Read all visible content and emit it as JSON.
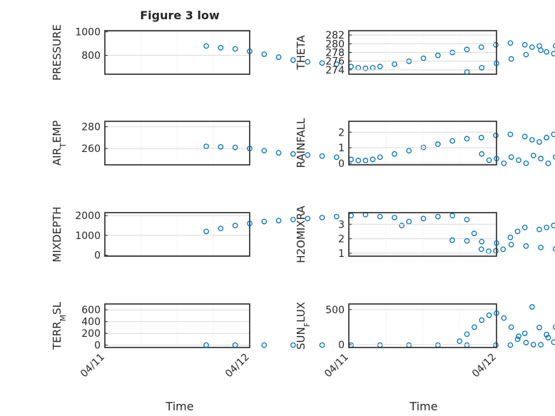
{
  "figure": {
    "title": "Figure 3 low",
    "xlabel": "Time"
  },
  "style": {
    "marker_color": "#0072BD",
    "axis_color": "#262626",
    "grid_color": "#d9d9d9",
    "background": "#ffffff"
  },
  "chart_data": [
    {
      "type": "scatter",
      "panel": "top-left",
      "ylabel": "PRESSURE",
      "xlim": [
        "04/11",
        "04/16"
      ],
      "ylim": [
        640,
        1010
      ],
      "yticks": [
        800,
        1000
      ],
      "points": [
        [
          0.7,
          880
        ],
        [
          0.8,
          865
        ],
        [
          0.9,
          855
        ],
        [
          1.0,
          835
        ],
        [
          1.1,
          810
        ],
        [
          1.2,
          785
        ],
        [
          1.3,
          760
        ],
        [
          1.4,
          745
        ],
        [
          1.5,
          735
        ],
        [
          1.6,
          725
        ],
        [
          1.7,
          705
        ],
        [
          1.75,
          695
        ],
        [
          1.8,
          690
        ],
        [
          1.85,
          695
        ],
        [
          1.9,
          705
        ],
        [
          2.0,
          725
        ],
        [
          2.1,
          750
        ],
        [
          2.2,
          775
        ],
        [
          2.3,
          800
        ],
        [
          2.4,
          825
        ],
        [
          2.5,
          850
        ],
        [
          2.6,
          870
        ],
        [
          2.7,
          890
        ],
        [
          2.8,
          905
        ],
        [
          2.9,
          890
        ],
        [
          2.95,
          870
        ],
        [
          3.0,
          880
        ],
        [
          3.05,
          830
        ],
        [
          3.1,
          815
        ],
        [
          3.15,
          870
        ],
        [
          3.2,
          895
        ],
        [
          3.3,
          920
        ],
        [
          3.4,
          945
        ],
        [
          3.5,
          940
        ],
        [
          3.6,
          955
        ],
        [
          3.7,
          975
        ],
        [
          3.8,
          985
        ],
        [
          3.9,
          995
        ],
        [
          4.0,
          1000
        ],
        [
          4.1,
          1005
        ]
      ]
    },
    {
      "type": "scatter",
      "panel": "top-right",
      "ylabel": "THETA",
      "xlim": [
        "04/11",
        "04/16"
      ],
      "ylim": [
        273,
        283
      ],
      "yticks": [
        274,
        276,
        278,
        280,
        282
      ],
      "points": [
        [
          0.8,
          273.5
        ],
        [
          0.9,
          274.5
        ],
        [
          1.0,
          275.5
        ],
        [
          1.1,
          276.5
        ],
        [
          1.2,
          277.5
        ],
        [
          1.3,
          278.5
        ],
        [
          1.4,
          279.5
        ],
        [
          1.5,
          280.5
        ],
        [
          1.6,
          281.5
        ],
        [
          1.7,
          282.0
        ],
        [
          1.8,
          282.3
        ],
        [
          1.9,
          282.5
        ],
        [
          2.0,
          282.5
        ],
        [
          2.1,
          282.4
        ],
        [
          2.2,
          282.3
        ],
        [
          2.3,
          282.2
        ],
        [
          2.4,
          282.0
        ],
        [
          2.5,
          281.8
        ],
        [
          2.6,
          281.5
        ],
        [
          2.65,
          280.0
        ],
        [
          2.7,
          279.5
        ],
        [
          2.75,
          280.2
        ],
        [
          2.8,
          281.0
        ],
        [
          2.9,
          282.0
        ],
        [
          3.0,
          282.5
        ],
        [
          3.1,
          282.6
        ],
        [
          3.2,
          282.4
        ],
        [
          3.3,
          282.2
        ],
        [
          3.4,
          281.5
        ],
        [
          3.5,
          280.8
        ],
        [
          3.55,
          280.2
        ],
        [
          3.6,
          280.6
        ],
        [
          3.7,
          281.5
        ],
        [
          3.75,
          282.6
        ]
      ]
    },
    {
      "type": "scatter",
      "panel": "second-left",
      "ylabel": "AIR_TEMP",
      "xlim": [
        "04/11",
        "04/16"
      ],
      "ylim": [
        245,
        285
      ],
      "yticks": [
        260,
        280
      ],
      "points": [
        [
          0.7,
          262
        ],
        [
          0.8,
          261.5
        ],
        [
          0.9,
          261
        ],
        [
          1.0,
          260
        ],
        [
          1.1,
          258
        ],
        [
          1.2,
          256
        ],
        [
          1.3,
          255
        ],
        [
          1.4,
          254
        ],
        [
          1.5,
          253
        ],
        [
          1.6,
          252
        ],
        [
          1.7,
          250
        ],
        [
          1.75,
          249
        ],
        [
          1.8,
          249
        ],
        [
          1.85,
          250
        ],
        [
          1.9,
          252
        ],
        [
          2.0,
          255
        ],
        [
          2.1,
          258
        ],
        [
          2.2,
          261
        ],
        [
          2.3,
          264
        ],
        [
          2.4,
          267
        ],
        [
          2.5,
          269
        ],
        [
          2.6,
          270
        ],
        [
          2.7,
          272
        ],
        [
          2.8,
          273
        ],
        [
          2.9,
          271
        ],
        [
          2.95,
          268
        ],
        [
          3.0,
          266
        ],
        [
          3.05,
          270
        ],
        [
          3.1,
          273
        ],
        [
          3.2,
          275
        ],
        [
          3.3,
          276
        ],
        [
          3.4,
          277
        ],
        [
          3.5,
          277.5
        ],
        [
          3.6,
          278
        ],
        [
          3.7,
          279
        ],
        [
          3.8,
          280
        ],
        [
          3.9,
          281
        ],
        [
          4.0,
          282
        ],
        [
          4.1,
          283.5
        ]
      ]
    },
    {
      "type": "scatter",
      "panel": "second-right",
      "ylabel": "RAINFALL",
      "xlim": [
        "04/11",
        "04/16"
      ],
      "ylim": [
        -0.1,
        2.7
      ],
      "yticks": [
        0,
        1,
        2
      ],
      "points": [
        [
          0.9,
          0.6
        ],
        [
          0.95,
          0.2
        ],
        [
          1.0,
          0.3
        ],
        [
          1.05,
          0.0
        ],
        [
          1.1,
          0.4
        ],
        [
          1.15,
          0.2
        ],
        [
          1.2,
          0.0
        ],
        [
          1.25,
          0.5
        ],
        [
          1.3,
          0.3
        ],
        [
          1.35,
          0.0
        ],
        [
          1.4,
          0.4
        ],
        [
          1.45,
          0.2
        ],
        [
          1.5,
          0.6
        ],
        [
          1.55,
          0.0
        ],
        [
          1.6,
          0.3
        ],
        [
          1.65,
          0.2
        ],
        [
          1.7,
          0.0
        ],
        [
          1.75,
          0.3
        ],
        [
          1.8,
          0.1
        ],
        [
          1.85,
          0.0
        ],
        [
          1.9,
          0.3
        ],
        [
          1.95,
          0.0
        ],
        [
          2.0,
          0.0
        ],
        [
          2.1,
          0.0
        ],
        [
          2.2,
          0.0
        ],
        [
          2.3,
          0.0
        ],
        [
          2.4,
          0.0
        ],
        [
          2.5,
          0.0
        ],
        [
          2.6,
          0.0
        ],
        [
          2.7,
          0.0
        ],
        [
          2.75,
          2.5
        ],
        [
          2.78,
          1.2
        ],
        [
          2.82,
          0.0
        ],
        [
          2.9,
          0.3
        ],
        [
          2.95,
          0.1
        ],
        [
          3.0,
          0.0
        ],
        [
          3.05,
          0.2
        ],
        [
          3.1,
          0.0
        ],
        [
          3.15,
          0.3
        ],
        [
          3.2,
          0.0
        ],
        [
          3.3,
          0.0
        ],
        [
          3.4,
          0.0
        ],
        [
          3.5,
          0.0
        ],
        [
          3.6,
          0.0
        ],
        [
          3.7,
          0.0
        ],
        [
          3.8,
          0.0
        ],
        [
          3.9,
          0.0
        ],
        [
          4.0,
          0.0
        ]
      ]
    },
    {
      "type": "scatter",
      "panel": "third-left",
      "ylabel": "MIXDEPTH",
      "xlim": [
        "04/11",
        "04/16"
      ],
      "ylim": [
        -50,
        2150
      ],
      "yticks": [
        0,
        1000,
        2000
      ],
      "points": [
        [
          0.7,
          1200
        ],
        [
          0.8,
          1350
        ],
        [
          0.9,
          1500
        ],
        [
          1.0,
          1600
        ],
        [
          1.1,
          1700
        ],
        [
          1.2,
          1750
        ],
        [
          1.3,
          1800
        ],
        [
          1.4,
          1850
        ],
        [
          1.5,
          1900
        ],
        [
          1.6,
          1950
        ],
        [
          1.7,
          2000
        ],
        [
          1.8,
          2050
        ],
        [
          1.9,
          1950
        ],
        [
          2.0,
          1900
        ],
        [
          2.05,
          1500
        ],
        [
          2.1,
          1700
        ],
        [
          2.2,
          1850
        ],
        [
          2.3,
          1950
        ],
        [
          2.4,
          2000
        ],
        [
          2.5,
          1800
        ],
        [
          2.55,
          1100
        ],
        [
          2.6,
          300
        ],
        [
          2.65,
          200
        ],
        [
          2.7,
          220
        ],
        [
          2.75,
          300
        ],
        [
          2.8,
          900
        ],
        [
          2.85,
          1200
        ],
        [
          2.9,
          1400
        ],
        [
          3.0,
          1300
        ],
        [
          3.05,
          1400
        ],
        [
          3.1,
          1500
        ],
        [
          3.2,
          1450
        ],
        [
          3.3,
          50
        ],
        [
          3.4,
          100
        ],
        [
          3.5,
          150
        ],
        [
          3.6,
          200
        ],
        [
          3.7,
          150
        ],
        [
          3.8,
          120
        ],
        [
          3.9,
          200
        ],
        [
          4.0,
          100
        ],
        [
          4.05,
          400
        ]
      ]
    },
    {
      "type": "scatter",
      "panel": "third-right",
      "ylabel": "H2OMIXRA",
      "xlim": [
        "04/11",
        "04/16"
      ],
      "ylim": [
        0.8,
        3.8
      ],
      "yticks": [
        1,
        2,
        3
      ],
      "points": [
        [
          0.7,
          1.9
        ],
        [
          0.8,
          1.85
        ],
        [
          0.9,
          1.8
        ],
        [
          1.0,
          1.7
        ],
        [
          1.1,
          1.6
        ],
        [
          1.2,
          1.5
        ],
        [
          1.3,
          1.4
        ],
        [
          1.4,
          1.3
        ],
        [
          1.5,
          1.2
        ],
        [
          1.6,
          1.15
        ],
        [
          1.7,
          1.1
        ],
        [
          1.8,
          1.05
        ],
        [
          1.85,
          1.0
        ],
        [
          1.9,
          1.0
        ],
        [
          2.0,
          1.1
        ],
        [
          2.1,
          1.2
        ],
        [
          2.2,
          1.3
        ],
        [
          2.3,
          1.4
        ],
        [
          2.4,
          1.5
        ],
        [
          2.5,
          1.6
        ],
        [
          2.6,
          1.7
        ],
        [
          2.65,
          1.5
        ],
        [
          2.7,
          2.0
        ],
        [
          2.75,
          2.6
        ],
        [
          2.8,
          3.0
        ],
        [
          2.85,
          3.2
        ],
        [
          2.9,
          2.9
        ],
        [
          3.0,
          2.7
        ],
        [
          3.05,
          3.1
        ],
        [
          3.1,
          3.2
        ],
        [
          3.2,
          3.3
        ],
        [
          3.3,
          3.4
        ],
        [
          3.4,
          3.5
        ],
        [
          3.5,
          3.5
        ],
        [
          3.6,
          3.4
        ],
        [
          3.7,
          3.6
        ],
        [
          3.8,
          3.5
        ],
        [
          3.85,
          3.45
        ]
      ]
    },
    {
      "type": "scatter",
      "panel": "bottom-left",
      "ylabel": "TERR_MSL",
      "xlim": [
        "04/11",
        "04/16"
      ],
      "ylim": [
        -40,
        700
      ],
      "yticks": [
        0,
        200,
        400,
        600
      ],
      "points": [
        [
          0.7,
          0
        ],
        [
          0.9,
          0
        ],
        [
          1.1,
          0
        ],
        [
          1.3,
          0
        ],
        [
          1.5,
          0
        ],
        [
          1.7,
          0
        ],
        [
          1.9,
          0
        ],
        [
          2.1,
          0
        ],
        [
          2.3,
          0
        ],
        [
          2.5,
          0
        ],
        [
          2.7,
          0
        ],
        [
          2.8,
          0
        ],
        [
          2.85,
          100
        ],
        [
          2.9,
          200
        ],
        [
          2.95,
          650
        ],
        [
          3.0,
          300
        ],
        [
          3.05,
          180
        ],
        [
          3.1,
          50
        ],
        [
          3.2,
          0
        ],
        [
          3.3,
          0
        ],
        [
          3.4,
          80
        ],
        [
          3.5,
          120
        ],
        [
          3.6,
          80
        ],
        [
          3.7,
          10
        ],
        [
          3.8,
          0
        ],
        [
          3.9,
          0
        ]
      ]
    },
    {
      "type": "scatter",
      "panel": "bottom-right",
      "ylabel": "SUN_FLUX",
      "xlim": [
        "04/11",
        "04/16"
      ],
      "ylim": [
        -40,
        580
      ],
      "yticks": [
        0,
        500
      ],
      "points": [
        [
          0.75,
          50
        ],
        [
          0.8,
          150
        ],
        [
          0.85,
          250
        ],
        [
          0.9,
          350
        ],
        [
          0.95,
          420
        ],
        [
          1.0,
          450
        ],
        [
          1.05,
          380
        ],
        [
          1.1,
          250
        ],
        [
          1.15,
          120
        ],
        [
          1.2,
          30
        ],
        [
          1.25,
          0
        ],
        [
          1.3,
          0
        ],
        [
          1.35,
          100
        ],
        [
          1.4,
          250
        ],
        [
          1.45,
          400
        ],
        [
          1.5,
          500
        ],
        [
          1.55,
          520
        ],
        [
          1.6,
          400
        ],
        [
          1.65,
          250
        ],
        [
          1.7,
          100
        ],
        [
          1.75,
          10
        ],
        [
          1.8,
          0
        ],
        [
          1.85,
          0
        ],
        [
          1.9,
          150
        ],
        [
          1.95,
          300
        ],
        [
          2.0,
          450
        ],
        [
          2.05,
          550
        ],
        [
          2.1,
          500
        ],
        [
          2.15,
          350
        ],
        [
          2.2,
          200
        ],
        [
          2.25,
          50
        ],
        [
          2.3,
          0
        ],
        [
          2.4,
          150
        ],
        [
          2.45,
          300
        ],
        [
          2.5,
          400
        ],
        [
          2.55,
          500
        ],
        [
          2.6,
          520
        ],
        [
          2.65,
          350
        ],
        [
          2.7,
          150
        ],
        [
          2.75,
          20
        ],
        [
          2.8,
          0
        ],
        [
          2.9,
          100
        ],
        [
          2.95,
          180
        ],
        [
          3.0,
          250
        ],
        [
          3.05,
          280
        ],
        [
          3.1,
          200
        ],
        [
          3.15,
          120
        ],
        [
          3.2,
          50
        ],
        [
          3.25,
          0
        ],
        [
          3.4,
          0
        ],
        [
          3.5,
          150
        ],
        [
          3.55,
          350
        ],
        [
          3.6,
          450
        ],
        [
          3.65,
          520
        ],
        [
          3.7,
          550
        ]
      ]
    }
  ]
}
